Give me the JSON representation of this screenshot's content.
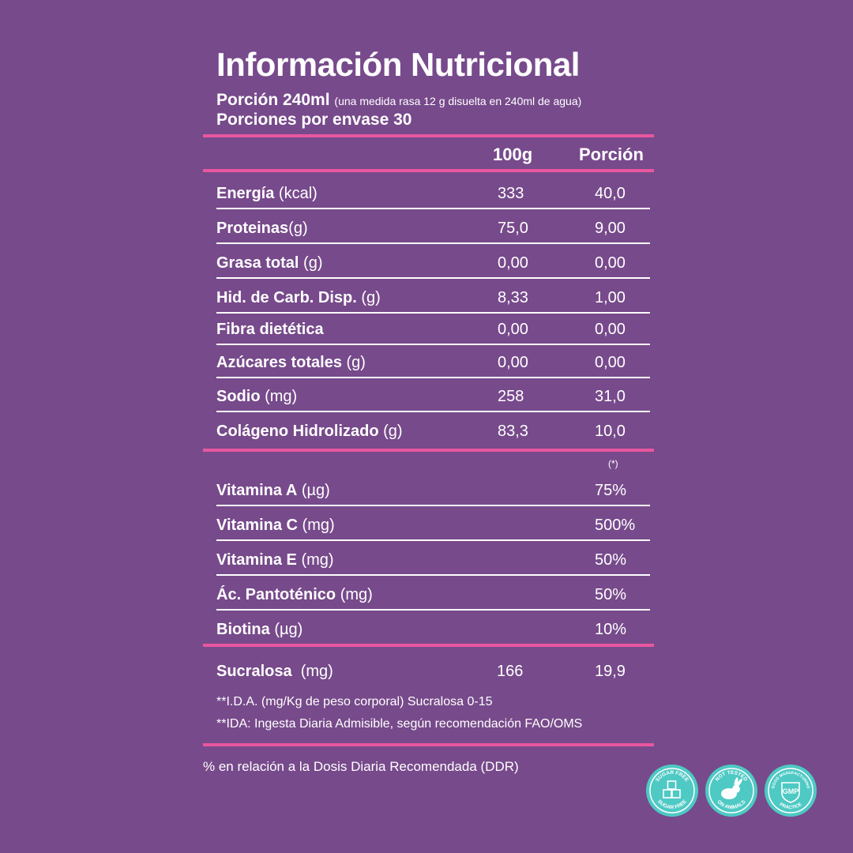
{
  "title": "Información Nutricional",
  "portion": {
    "label": "Porción 240ml",
    "note": "(una medida rasa 12 g disuelta en 240ml de agua)"
  },
  "servings": "Porciones por envase 30",
  "headers": {
    "col1": "100g",
    "col2": "Porción"
  },
  "nutrients": [
    {
      "name": "Energía",
      "unit": " (kcal)",
      "v100": "333",
      "vportion": "40,0"
    },
    {
      "name": "Proteinas",
      "unit": "(g)",
      "v100": "75,0",
      "vportion": "9,00"
    },
    {
      "name": "Grasa total",
      "unit": " (g)",
      "v100": "0,00",
      "vportion": "0,00"
    },
    {
      "name": "Hid. de Carb. Disp.",
      "unit": " (g)",
      "v100": "8,33",
      "vportion": "1,00"
    },
    {
      "name": "Fibra dietética",
      "unit": "",
      "v100": "0,00",
      "vportion": "0,00"
    },
    {
      "name": "Azúcares totales",
      "unit": " (g)",
      "v100": "0,00",
      "vportion": "0,00"
    },
    {
      "name": "Sodio",
      "unit": " (mg)",
      "v100": "258",
      "vportion": "31,0"
    },
    {
      "name": "Colágeno Hidrolizado",
      "unit": " (g)",
      "v100": "83,3",
      "vportion": "10,0"
    }
  ],
  "vitamins_note": "(*)",
  "vitamins": [
    {
      "name": "Vitamina A",
      "unit": " (µg)",
      "pct": "75%"
    },
    {
      "name": "Vitamina C",
      "unit": " (mg)",
      "pct": "500%"
    },
    {
      "name": "Vitamina E",
      "unit": " (mg)",
      "pct": "50%"
    },
    {
      "name": "Ác. Pantoténico",
      "unit": " (mg)",
      "pct": "50%"
    },
    {
      "name": "Biotina",
      "unit": " (µg)",
      "pct": "10%"
    }
  ],
  "sweetener": {
    "name": "Sucralosa",
    "unit": "  (mg)",
    "v100": "166",
    "vportion": "19,9"
  },
  "footnotes": [
    "**I.D.A. (mg/Kg de peso corporal) Sucralosa 0-15",
    "**IDA: Ingesta Diaria Admisible, según recomendación FAO/OMS"
  ],
  "ddr_note": "% en relación a la Dosis Diaria Recomendada (DDR)",
  "badges": [
    {
      "icon": "sugar-cube-icon",
      "top_text": "SUGAR FREE",
      "bottom_text": "SUGAR FREE"
    },
    {
      "icon": "rabbit-icon",
      "top_text": "NOT TESTED",
      "bottom_text": "ON ANIMALS"
    },
    {
      "icon": "gmp-shield-icon",
      "top_text": "GOOD MANUFACTURING",
      "bottom_text": "PRACTICE",
      "center_text": "GMP"
    }
  ],
  "colors": {
    "background": "#774a8b",
    "accent": "#e8579f",
    "badge": "#4ec9c4",
    "text": "#ffffff"
  }
}
